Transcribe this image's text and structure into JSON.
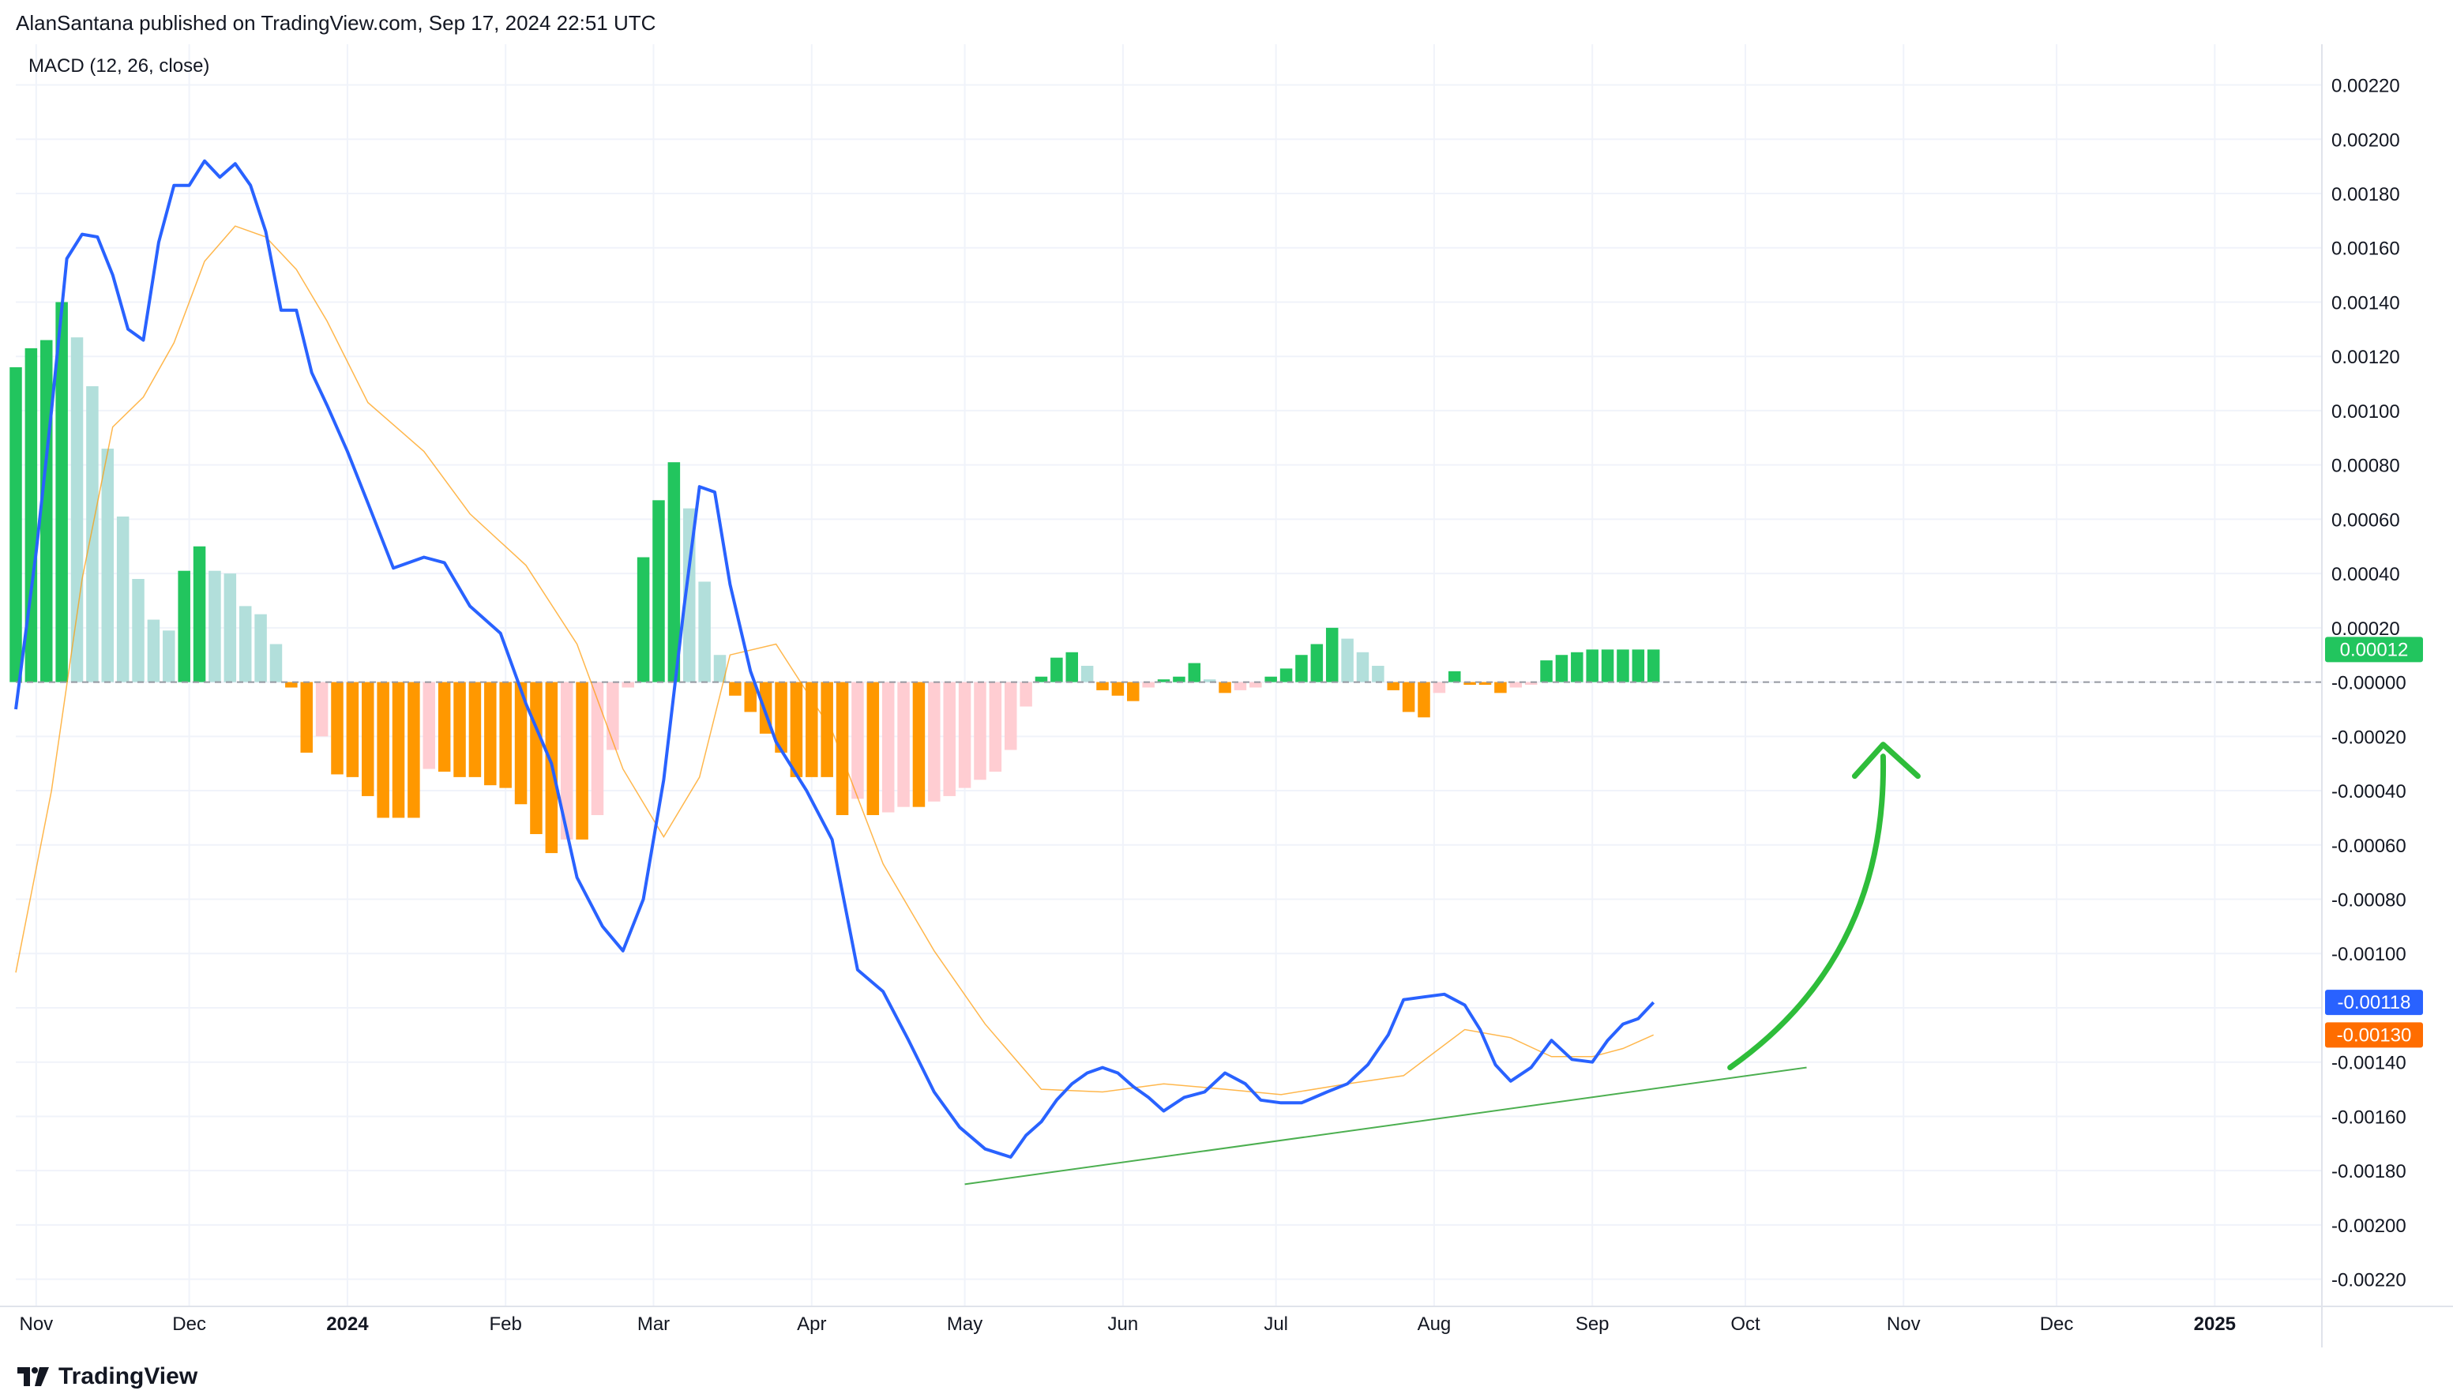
{
  "header": {
    "publisher": "AlanSantana published on TradingView.com, Sep 17, 2024 22:51 UTC"
  },
  "indicator": {
    "label": "MACD (12, 26, close)"
  },
  "footer": {
    "brand": "TradingView"
  },
  "colors": {
    "macd_line": "#2962ff",
    "signal_line": "#ff9800",
    "hist_pos_strong": "#22c55e",
    "hist_pos_weak": "#b2dfdb",
    "hist_neg_strong": "#ff9800",
    "hist_neg_weak": "#ffcdd2",
    "annotation": "#2ebd3a",
    "trendline": "#4caf50"
  },
  "chart_data": {
    "type": "line",
    "title": "MACD (12, 26, close)",
    "ylim": [
      -0.0023,
      0.00235
    ],
    "y_ticks": [
      "0.00220",
      "0.00200",
      "0.00180",
      "0.00160",
      "0.00140",
      "0.00120",
      "0.00100",
      "0.00080",
      "0.00060",
      "0.00040",
      "0.00020",
      "-0.00000",
      "-0.00020",
      "-0.00040",
      "-0.00060",
      "-0.00080",
      "-0.00100",
      "-0.00120",
      "-0.00140",
      "-0.00160",
      "-0.00180",
      "-0.00200",
      "-0.00220"
    ],
    "y_tick_values": [
      0.0022,
      0.002,
      0.0018,
      0.0016,
      0.0014,
      0.0012,
      0.001,
      0.0008,
      0.0006,
      0.0004,
      0.0002,
      0,
      -0.0002,
      -0.0004,
      -0.0006,
      -0.0008,
      -0.001,
      -0.0012,
      -0.0014,
      -0.0016,
      -0.0018,
      -0.002,
      -0.0022
    ],
    "x_range": [
      "2023-10-28",
      "2025-01-22"
    ],
    "x_ticks": [
      {
        "label": "Nov",
        "date": "2023-11-01",
        "bold": false
      },
      {
        "label": "Dec",
        "date": "2023-12-01",
        "bold": false
      },
      {
        "label": "2024",
        "date": "2024-01-01",
        "bold": true
      },
      {
        "label": "Feb",
        "date": "2024-02-01",
        "bold": false
      },
      {
        "label": "Mar",
        "date": "2024-03-01",
        "bold": false
      },
      {
        "label": "Apr",
        "date": "2024-04-01",
        "bold": false
      },
      {
        "label": "May",
        "date": "2024-05-01",
        "bold": false
      },
      {
        "label": "Jun",
        "date": "2024-06-01",
        "bold": false
      },
      {
        "label": "Jul",
        "date": "2024-07-01",
        "bold": false
      },
      {
        "label": "Aug",
        "date": "2024-08-01",
        "bold": false
      },
      {
        "label": "Sep",
        "date": "2024-09-01",
        "bold": false
      },
      {
        "label": "Oct",
        "date": "2024-10-01",
        "bold": false
      },
      {
        "label": "Nov",
        "date": "2024-11-01",
        "bold": false
      },
      {
        "label": "Dec",
        "date": "2024-12-01",
        "bold": false
      },
      {
        "label": "2025",
        "date": "2025-01-01",
        "bold": true
      }
    ],
    "grid": true,
    "series": [
      {
        "role": "macd",
        "x": [
          "2023-10-28",
          "2023-11-01",
          "2023-11-04",
          "2023-11-07",
          "2023-11-10",
          "2023-11-13",
          "2023-11-16",
          "2023-11-19",
          "2023-11-22",
          "2023-11-25",
          "2023-11-28",
          "2023-12-01",
          "2023-12-04",
          "2023-12-07",
          "2023-12-10",
          "2023-12-13",
          "2023-12-16",
          "2023-12-19",
          "2023-12-22",
          "2023-12-25",
          "2023-12-28",
          "2024-01-01",
          "2024-01-05",
          "2024-01-10",
          "2024-01-16",
          "2024-01-20",
          "2024-01-25",
          "2024-01-31",
          "2024-02-05",
          "2024-02-10",
          "2024-02-15",
          "2024-02-20",
          "2024-02-24",
          "2024-02-28",
          "2024-03-03",
          "2024-03-07",
          "2024-03-10",
          "2024-03-13",
          "2024-03-16",
          "2024-03-20",
          "2024-03-25",
          "2024-03-31",
          "2024-04-05",
          "2024-04-10",
          "2024-04-15",
          "2024-04-20",
          "2024-04-25",
          "2024-04-30",
          "2024-05-05",
          "2024-05-10",
          "2024-05-13",
          "2024-05-16",
          "2024-05-19",
          "2024-05-22",
          "2024-05-25",
          "2024-05-28",
          "2024-05-31",
          "2024-06-03",
          "2024-06-06",
          "2024-06-09",
          "2024-06-13",
          "2024-06-17",
          "2024-06-21",
          "2024-06-25",
          "2024-06-28",
          "2024-07-02",
          "2024-07-06",
          "2024-07-11",
          "2024-07-15",
          "2024-07-19",
          "2024-07-23",
          "2024-07-26",
          "2024-07-30",
          "2024-08-03",
          "2024-08-07",
          "2024-08-10",
          "2024-08-13",
          "2024-08-16",
          "2024-08-20",
          "2024-08-24",
          "2024-08-28",
          "2024-09-01",
          "2024-09-04",
          "2024-09-07",
          "2024-09-10",
          "2024-09-13"
        ],
        "values": [
          -0.0001,
          0.00048,
          0.001,
          0.00156,
          0.00165,
          0.00164,
          0.0015,
          0.0013,
          0.00126,
          0.00162,
          0.00183,
          0.00183,
          0.00192,
          0.00186,
          0.00191,
          0.00183,
          0.00166,
          0.00137,
          0.00137,
          0.00114,
          0.00102,
          0.00085,
          0.00066,
          0.00042,
          0.00046,
          0.00044,
          0.00028,
          0.00018,
          -8e-05,
          -0.0003,
          -0.00072,
          -0.0009,
          -0.00099,
          -0.0008,
          -0.00036,
          0.00028,
          0.00072,
          0.0007,
          0.00036,
          4e-05,
          -0.00022,
          -0.0004,
          -0.00058,
          -0.00106,
          -0.00114,
          -0.00132,
          -0.00151,
          -0.00164,
          -0.00172,
          -0.00175,
          -0.00167,
          -0.00162,
          -0.00154,
          -0.00148,
          -0.00144,
          -0.00142,
          -0.00144,
          -0.00149,
          -0.00153,
          -0.00158,
          -0.00153,
          -0.00151,
          -0.00144,
          -0.00148,
          -0.00154,
          -0.00155,
          -0.00155,
          -0.00151,
          -0.00148,
          -0.00141,
          -0.0013,
          -0.00117,
          -0.00116,
          -0.00115,
          -0.00119,
          -0.00128,
          -0.00141,
          -0.00147,
          -0.00142,
          -0.00132,
          -0.00139,
          -0.0014,
          -0.00132,
          -0.00126,
          -0.00124,
          -0.00118
        ]
      },
      {
        "role": "signal",
        "x": [
          "2023-10-28",
          "2023-11-04",
          "2023-11-10",
          "2023-11-16",
          "2023-11-22",
          "2023-11-28",
          "2023-12-04",
          "2023-12-10",
          "2023-12-16",
          "2023-12-22",
          "2023-12-28",
          "2024-01-05",
          "2024-01-16",
          "2024-01-25",
          "2024-02-05",
          "2024-02-15",
          "2024-02-24",
          "2024-03-03",
          "2024-03-10",
          "2024-03-16",
          "2024-03-25",
          "2024-04-05",
          "2024-04-15",
          "2024-04-25",
          "2024-05-05",
          "2024-05-16",
          "2024-05-28",
          "2024-06-09",
          "2024-06-21",
          "2024-07-02",
          "2024-07-15",
          "2024-07-26",
          "2024-08-07",
          "2024-08-16",
          "2024-08-24",
          "2024-09-01",
          "2024-09-07",
          "2024-09-13"
        ],
        "values": [
          -0.00107,
          -0.0004,
          0.00038,
          0.00094,
          0.00105,
          0.00125,
          0.00155,
          0.00168,
          0.00164,
          0.00152,
          0.00133,
          0.00103,
          0.00085,
          0.00062,
          0.00043,
          0.00014,
          -0.00032,
          -0.00057,
          -0.00035,
          0.0001,
          0.00014,
          -0.00018,
          -0.00067,
          -0.00099,
          -0.00126,
          -0.0015,
          -0.00151,
          -0.00148,
          -0.0015,
          -0.00152,
          -0.00148,
          -0.00145,
          -0.00128,
          -0.00131,
          -0.00138,
          -0.00138,
          -0.00135,
          -0.0013
        ]
      }
    ],
    "histogram": {
      "x": [
        "2023-10-28",
        "2023-10-31",
        "2023-11-03",
        "2023-11-06",
        "2023-11-09",
        "2023-11-12",
        "2023-11-15",
        "2023-11-18",
        "2023-11-21",
        "2023-11-24",
        "2023-11-27",
        "2023-11-30",
        "2023-12-03",
        "2023-12-06",
        "2023-12-09",
        "2023-12-12",
        "2023-12-15",
        "2023-12-18",
        "2023-12-21",
        "2023-12-24",
        "2023-12-27",
        "2023-12-30",
        "2024-01-02",
        "2024-01-05",
        "2024-01-08",
        "2024-01-11",
        "2024-01-14",
        "2024-01-17",
        "2024-01-20",
        "2024-01-23",
        "2024-01-26",
        "2024-01-29",
        "2024-02-01",
        "2024-02-04",
        "2024-02-07",
        "2024-02-10",
        "2024-02-13",
        "2024-02-16",
        "2024-02-19",
        "2024-02-22",
        "2024-02-25",
        "2024-02-28",
        "2024-03-02",
        "2024-03-05",
        "2024-03-08",
        "2024-03-11",
        "2024-03-14",
        "2024-03-17",
        "2024-03-20",
        "2024-03-23",
        "2024-03-26",
        "2024-03-29",
        "2024-04-01",
        "2024-04-04",
        "2024-04-07",
        "2024-04-10",
        "2024-04-13",
        "2024-04-16",
        "2024-04-19",
        "2024-04-22",
        "2024-04-25",
        "2024-04-28",
        "2024-05-01",
        "2024-05-04",
        "2024-05-07",
        "2024-05-10",
        "2024-05-13",
        "2024-05-16",
        "2024-05-19",
        "2024-05-22",
        "2024-05-25",
        "2024-05-28",
        "2024-05-31",
        "2024-06-03",
        "2024-06-06",
        "2024-06-09",
        "2024-06-12",
        "2024-06-15",
        "2024-06-18",
        "2024-06-21",
        "2024-06-24",
        "2024-06-27",
        "2024-06-30",
        "2024-07-03",
        "2024-07-06",
        "2024-07-09",
        "2024-07-12",
        "2024-07-15",
        "2024-07-18",
        "2024-07-21",
        "2024-07-24",
        "2024-07-27",
        "2024-07-30",
        "2024-08-02",
        "2024-08-05",
        "2024-08-08",
        "2024-08-11",
        "2024-08-14",
        "2024-08-17",
        "2024-08-20",
        "2024-08-23",
        "2024-08-26",
        "2024-08-29",
        "2024-09-01",
        "2024-09-04",
        "2024-09-07",
        "2024-09-10",
        "2024-09-13"
      ],
      "values": [
        0.00116,
        0.00123,
        0.00126,
        0.0014,
        0.00127,
        0.00109,
        0.00086,
        0.00061,
        0.00038,
        0.00023,
        0.00019,
        0.00041,
        0.0005,
        0.00041,
        0.0004,
        0.00028,
        0.00025,
        0.00014,
        -2e-05,
        -0.00026,
        -0.0002,
        -0.00034,
        -0.00035,
        -0.00042,
        -0.0005,
        -0.0005,
        -0.0005,
        -0.00032,
        -0.00033,
        -0.00035,
        -0.00035,
        -0.00038,
        -0.00039,
        -0.00045,
        -0.00056,
        -0.00063,
        -0.00058,
        -0.00058,
        -0.00049,
        -0.00025,
        -2e-05,
        0.00046,
        0.00067,
        0.00081,
        0.00064,
        0.00037,
        0.0001,
        -5e-05,
        -0.00011,
        -0.00019,
        -0.00026,
        -0.00035,
        -0.00035,
        -0.00035,
        -0.00049,
        -0.00043,
        -0.00049,
        -0.00048,
        -0.00046,
        -0.00046,
        -0.00044,
        -0.00042,
        -0.00039,
        -0.00036,
        -0.00033,
        -0.00025,
        -9e-05,
        2e-05,
        9e-05,
        0.00011,
        6e-05,
        -3e-05,
        -5e-05,
        -7e-05,
        -2e-05,
        1e-05,
        2e-05,
        7e-05,
        1e-05,
        -4e-05,
        -3e-05,
        -2e-05,
        2e-05,
        5e-05,
        0.0001,
        0.00014,
        0.0002,
        0.00016,
        0.00011,
        6e-05,
        -3e-05,
        -0.00011,
        -0.00013,
        -4e-05,
        4e-05,
        -1e-05,
        -1e-05,
        -4e-05,
        -2e-05,
        -1e-05,
        8e-05,
        0.0001,
        0.00011,
        0.00012,
        0.00012,
        0.00012,
        0.00012,
        0.00012
      ]
    },
    "annotations": {
      "trendline": {
        "from": {
          "x": "2024-05-01",
          "y": -0.00185
        },
        "to": {
          "x": "2024-10-13",
          "y": -0.00142
        }
      },
      "arrow": {
        "from": {
          "x": "2024-09-28",
          "y": -0.00142
        },
        "tip": {
          "x": "2024-10-28",
          "y": -0.00023
        }
      }
    },
    "last_values": [
      {
        "label": "0.00012",
        "value": 0.00012,
        "color": "#22c55e"
      },
      {
        "label": "-0.00118",
        "value": -0.00118,
        "color": "#2962ff"
      },
      {
        "label": "-0.00130",
        "value": -0.0013,
        "color": "#ff6d00"
      }
    ]
  }
}
